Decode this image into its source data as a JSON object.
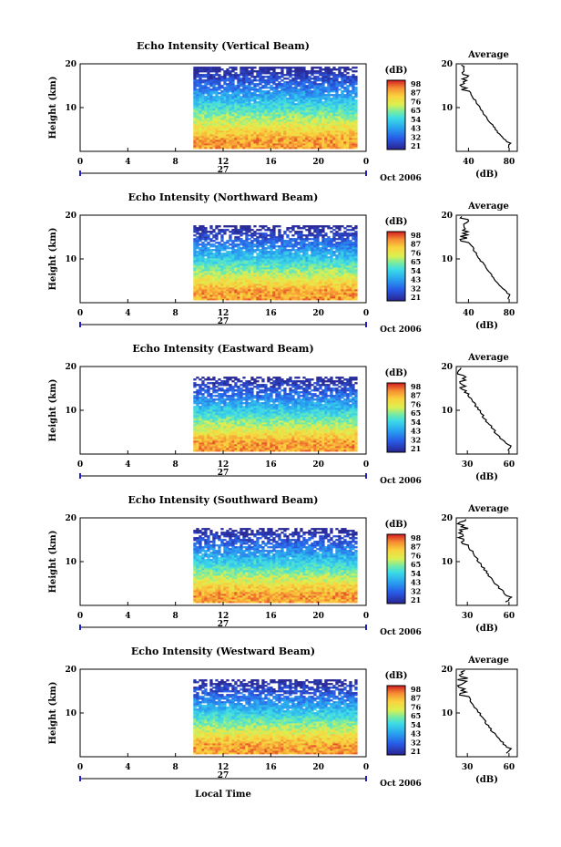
{
  "chart_data": [
    {
      "type": "heatmap",
      "title": "Echo Intensity (Vertical Beam)",
      "ylabel": "Height (km)",
      "x_ticks": [
        "0",
        "4",
        "8",
        "12",
        "16",
        "20",
        "0"
      ],
      "y_ticks": [
        "20",
        "10"
      ],
      "date_label": "27",
      "date_suffix": "Oct 2006",
      "ylim": [
        0,
        20
      ],
      "xlim": [
        0,
        24
      ],
      "data_start_hour": 9.5,
      "colorbar": {
        "unit": "(dB)",
        "ticks": [
          "98",
          "87",
          "76",
          "65",
          "54",
          "43",
          "32",
          "21"
        ]
      },
      "profile": {
        "title": "Average",
        "xlabel": "(dB)",
        "x_ticks": [
          "40",
          "80"
        ],
        "y_ticks": [
          "20",
          "10"
        ],
        "xlim": [
          28,
          88
        ]
      }
    },
    {
      "type": "heatmap",
      "title": "Echo Intensity (Northward Beam)",
      "ylabel": "Height (km)",
      "x_ticks": [
        "0",
        "4",
        "8",
        "12",
        "16",
        "20",
        "0"
      ],
      "y_ticks": [
        "20",
        "10"
      ],
      "date_label": "27",
      "date_suffix": "Oct 2006",
      "ylim": [
        0,
        20
      ],
      "xlim": [
        0,
        24
      ],
      "data_start_hour": 9.5,
      "colorbar": {
        "unit": "(dB)",
        "ticks": [
          "98",
          "87",
          "76",
          "65",
          "54",
          "43",
          "32",
          "21"
        ]
      },
      "profile": {
        "title": "Average",
        "xlabel": "(dB)",
        "x_ticks": [
          "40",
          "80"
        ],
        "y_ticks": [
          "20",
          "10"
        ],
        "xlim": [
          28,
          88
        ]
      }
    },
    {
      "type": "heatmap",
      "title": "Echo Intensity (Eastward Beam)",
      "ylabel": "Height (km)",
      "x_ticks": [
        "0",
        "4",
        "8",
        "12",
        "16",
        "20",
        "0"
      ],
      "y_ticks": [
        "20",
        "10"
      ],
      "date_label": "27",
      "date_suffix": "Oct 2006",
      "ylim": [
        0,
        20
      ],
      "xlim": [
        0,
        24
      ],
      "data_start_hour": 9.5,
      "colorbar": {
        "unit": "(dB)",
        "ticks": [
          "98",
          "87",
          "76",
          "65",
          "54",
          "43",
          "32",
          "21"
        ]
      },
      "profile": {
        "title": "Average",
        "xlabel": "(dB)",
        "x_ticks": [
          "30",
          "60"
        ],
        "y_ticks": [
          "20",
          "10"
        ],
        "xlim": [
          22,
          66
        ]
      }
    },
    {
      "type": "heatmap",
      "title": "Echo Intensity (Southward Beam)",
      "ylabel": "Height (km)",
      "x_ticks": [
        "0",
        "4",
        "8",
        "12",
        "16",
        "20",
        "0"
      ],
      "y_ticks": [
        "20",
        "10"
      ],
      "date_label": "27",
      "date_suffix": "Oct 2006",
      "ylim": [
        0,
        20
      ],
      "xlim": [
        0,
        24
      ],
      "data_start_hour": 9.5,
      "colorbar": {
        "unit": "(dB)",
        "ticks": [
          "98",
          "87",
          "76",
          "65",
          "54",
          "43",
          "32",
          "21"
        ]
      },
      "profile": {
        "title": "Average",
        "xlabel": "(dB)",
        "x_ticks": [
          "30",
          "60"
        ],
        "y_ticks": [
          "20",
          "10"
        ],
        "xlim": [
          22,
          66
        ]
      }
    },
    {
      "type": "heatmap",
      "title": "Echo Intensity (Westward Beam)",
      "ylabel": "Height (km)",
      "x_ticks": [
        "0",
        "4",
        "8",
        "12",
        "16",
        "20",
        "0"
      ],
      "y_ticks": [
        "20",
        "10"
      ],
      "date_label": "27",
      "date_suffix": "Oct 2006",
      "xlabel": "Local Time",
      "ylim": [
        0,
        20
      ],
      "xlim": [
        0,
        24
      ],
      "data_start_hour": 9.5,
      "colorbar": {
        "unit": "(dB)",
        "ticks": [
          "98",
          "87",
          "76",
          "65",
          "54",
          "43",
          "32",
          "21"
        ]
      },
      "profile": {
        "title": "Average",
        "xlabel": "(dB)",
        "x_ticks": [
          "30",
          "60"
        ],
        "y_ticks": [
          "20",
          "10"
        ],
        "xlim": [
          22,
          66
        ]
      }
    }
  ]
}
